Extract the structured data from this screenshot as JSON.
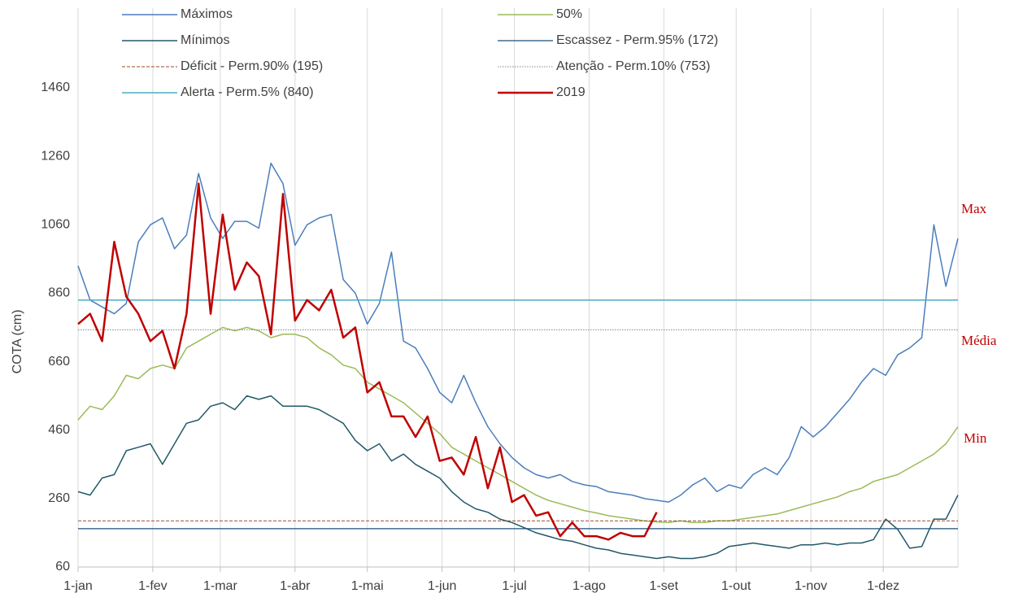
{
  "chart_data": {
    "type": "line",
    "y_label": "COTA (cm)",
    "xlim": [
      0,
      365
    ],
    "xticks": [
      {
        "value": 0,
        "label": "1-jan"
      },
      {
        "value": 31,
        "label": "1-fev"
      },
      {
        "value": 59,
        "label": "1-mar"
      },
      {
        "value": 90,
        "label": "1-abr"
      },
      {
        "value": 120,
        "label": "1-mai"
      },
      {
        "value": 151,
        "label": "1-jun"
      },
      {
        "value": 181,
        "label": "1-jul"
      },
      {
        "value": 212,
        "label": "1-ago"
      },
      {
        "value": 243,
        "label": "1-set"
      },
      {
        "value": 273,
        "label": "1-out"
      },
      {
        "value": 304,
        "label": "1-nov"
      },
      {
        "value": 334,
        "label": "1-dez"
      }
    ],
    "ylim": [
      60,
      1460
    ],
    "yticks": [
      60,
      260,
      460,
      660,
      860,
      1060,
      1260,
      1460
    ],
    "grid": "x",
    "x": [
      0,
      5,
      10,
      15,
      20,
      25,
      30,
      35,
      40,
      45,
      50,
      55,
      60,
      65,
      70,
      75,
      80,
      85,
      90,
      95,
      100,
      105,
      110,
      115,
      120,
      125,
      130,
      135,
      140,
      145,
      150,
      155,
      160,
      165,
      170,
      175,
      180,
      185,
      190,
      195,
      200,
      205,
      210,
      215,
      220,
      225,
      230,
      235,
      240,
      245,
      250,
      255,
      260,
      265,
      270,
      275,
      280,
      285,
      290,
      295,
      300,
      305,
      310,
      315,
      320,
      325,
      330,
      335,
      340,
      345,
      350,
      355,
      360,
      365
    ],
    "series": [
      {
        "name": "Máximos",
        "color": "#4a7ebb",
        "width": 1.5,
        "values": [
          940,
          840,
          820,
          800,
          830,
          1010,
          1060,
          1080,
          990,
          1030,
          1210,
          1080,
          1020,
          1070,
          1070,
          1050,
          1240,
          1180,
          1000,
          1060,
          1080,
          1090,
          900,
          860,
          770,
          830,
          980,
          720,
          700,
          640,
          570,
          540,
          620,
          540,
          470,
          420,
          380,
          350,
          330,
          320,
          330,
          310,
          300,
          295,
          280,
          275,
          270,
          260,
          255,
          250,
          270,
          300,
          320,
          280,
          300,
          290,
          330,
          350,
          330,
          380,
          470,
          440,
          470,
          510,
          550,
          600,
          640,
          620,
          680,
          700,
          730,
          1060,
          880,
          1020
        ]
      },
      {
        "name": "50%",
        "color": "#9bbb59",
        "width": 1.5,
        "values": [
          490,
          530,
          520,
          560,
          620,
          610,
          640,
          650,
          640,
          700,
          720,
          740,
          760,
          750,
          760,
          750,
          730,
          740,
          740,
          730,
          700,
          680,
          650,
          640,
          600,
          580,
          560,
          540,
          510,
          480,
          450,
          410,
          390,
          370,
          350,
          330,
          310,
          290,
          270,
          255,
          245,
          235,
          225,
          218,
          210,
          205,
          200,
          195,
          192,
          190,
          195,
          190,
          190,
          195,
          195,
          200,
          205,
          210,
          215,
          225,
          235,
          245,
          255,
          265,
          280,
          290,
          310,
          320,
          330,
          350,
          370,
          390,
          420,
          470
        ]
      },
      {
        "name": "Mínimos",
        "color": "#215968",
        "width": 1.5,
        "values": [
          280,
          270,
          320,
          330,
          400,
          410,
          420,
          360,
          420,
          480,
          490,
          530,
          540,
          520,
          560,
          550,
          560,
          530,
          530,
          530,
          520,
          500,
          480,
          430,
          400,
          420,
          370,
          390,
          360,
          340,
          320,
          280,
          250,
          230,
          220,
          200,
          190,
          175,
          160,
          150,
          140,
          135,
          125,
          115,
          110,
          100,
          95,
          90,
          85,
          90,
          85,
          85,
          90,
          100,
          120,
          125,
          130,
          125,
          120,
          115,
          125,
          125,
          130,
          125,
          130,
          130,
          140,
          200,
          170,
          115,
          120,
          200,
          200,
          270
        ]
      },
      {
        "name": "Escassez - Perm.95% (172)",
        "color": "#1f4e79",
        "width": 1.2,
        "value": 172
      },
      {
        "name": "Déficit - Perm.90% (195)",
        "color": "#9c4a2a",
        "width": 1,
        "dash": "dashed",
        "value": 195
      },
      {
        "name": "Atenção - Perm.10% (753)",
        "color": "#888888",
        "width": 1,
        "dash": "dotted",
        "value": 753
      },
      {
        "name": "Alerta - Perm.5% (840)",
        "color": "#4bacc6",
        "width": 1.5,
        "value": 840
      },
      {
        "name": "2019",
        "color": "#c00000",
        "width": 2.5,
        "values": [
          770,
          800,
          720,
          1010,
          850,
          800,
          720,
          750,
          640,
          800,
          1180,
          800,
          1090,
          870,
          950,
          910,
          740,
          1150,
          780,
          840,
          810,
          870,
          730,
          760,
          570,
          600,
          500,
          500,
          440,
          500,
          370,
          380,
          330,
          440,
          290,
          410,
          250,
          270,
          210,
          220,
          150,
          190,
          150,
          150,
          140,
          160,
          150,
          150,
          220,
          null,
          null,
          null,
          null,
          null,
          null,
          null,
          null,
          null,
          null,
          null,
          null,
          null,
          null,
          null,
          null,
          null,
          null,
          null,
          null,
          null,
          null,
          null,
          null,
          null
        ]
      }
    ],
    "annotations": [
      {
        "text": "Max",
        "color": "#c00000"
      },
      {
        "text": "Média",
        "color": "#c00000"
      },
      {
        "text": "Min",
        "color": "#c00000"
      }
    ]
  }
}
